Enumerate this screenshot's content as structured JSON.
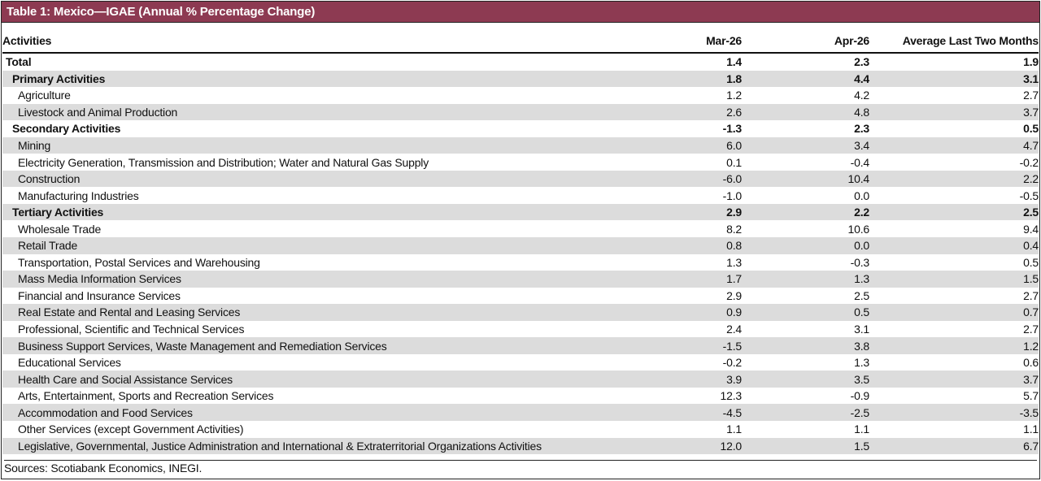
{
  "title": "Table 1: Mexico—IGAE (Annual % Percentage Change)",
  "table": {
    "columns": [
      "Activities",
      "Mar-26",
      "Apr-26",
      "Average Last Two Months"
    ],
    "rows": [
      [
        "Total",
        "1.4",
        "2.3",
        "1.9"
      ],
      [
        "Primary Activities",
        "1.8",
        "4.4",
        "3.1"
      ],
      [
        "Agriculture",
        "1.2",
        "4.2",
        "2.7"
      ],
      [
        "Livestock and Animal Production",
        "2.6",
        "4.8",
        "3.7"
      ],
      [
        "Secondary Activities",
        "-1.3",
        "2.3",
        "0.5"
      ],
      [
        "Mining",
        "6.0",
        "3.4",
        "4.7"
      ],
      [
        "Electricity Generation, Transmission and Distribution; Water and Natural Gas Supply",
        "0.1",
        "-0.4",
        "-0.2"
      ],
      [
        "Construction",
        "-6.0",
        "10.4",
        "2.2"
      ],
      [
        "Manufacturing Industries",
        "-1.0",
        "0.0",
        "-0.5"
      ],
      [
        "Tertiary Activities",
        "2.9",
        "2.2",
        "2.5"
      ],
      [
        "Wholesale Trade",
        "8.2",
        "10.6",
        "9.4"
      ],
      [
        "Retail Trade",
        "0.8",
        "0.0",
        "0.4"
      ],
      [
        "Transportation, Postal Services and Warehousing",
        "1.3",
        "-0.3",
        "0.5"
      ],
      [
        "Mass Media Information Services",
        "1.7",
        "1.3",
        "1.5"
      ],
      [
        "Financial and Insurance Services",
        "2.9",
        "2.5",
        "2.7"
      ],
      [
        "Real Estate and Rental and Leasing Services",
        "0.9",
        "0.5",
        "0.7"
      ],
      [
        "Professional, Scientific and Technical Services",
        "2.4",
        "3.1",
        "2.7"
      ],
      [
        "Business Support Services, Waste Management and Remediation Services",
        "-1.5",
        "3.8",
        "1.2"
      ],
      [
        "Educational Services",
        "-0.2",
        "1.3",
        "0.6"
      ],
      [
        "Health Care and Social Assistance Services",
        "3.9",
        "3.5",
        "3.7"
      ],
      [
        "Arts, Entertainment, Sports and Recreation Services",
        "12.3",
        "-0.9",
        "5.7"
      ],
      [
        "Accommodation and Food Services",
        "-4.5",
        "-2.5",
        "-3.5"
      ],
      [
        "Other Services (except Government Activities)",
        "1.1",
        "1.1",
        "1.1"
      ],
      [
        "Legislative, Governmental, Justice Administration and International & Extraterritorial Organizations Activities",
        "12.0",
        "1.5",
        "6.7"
      ]
    ]
  },
  "source": "Sources: Scotiabank Economics, INEGI."
}
